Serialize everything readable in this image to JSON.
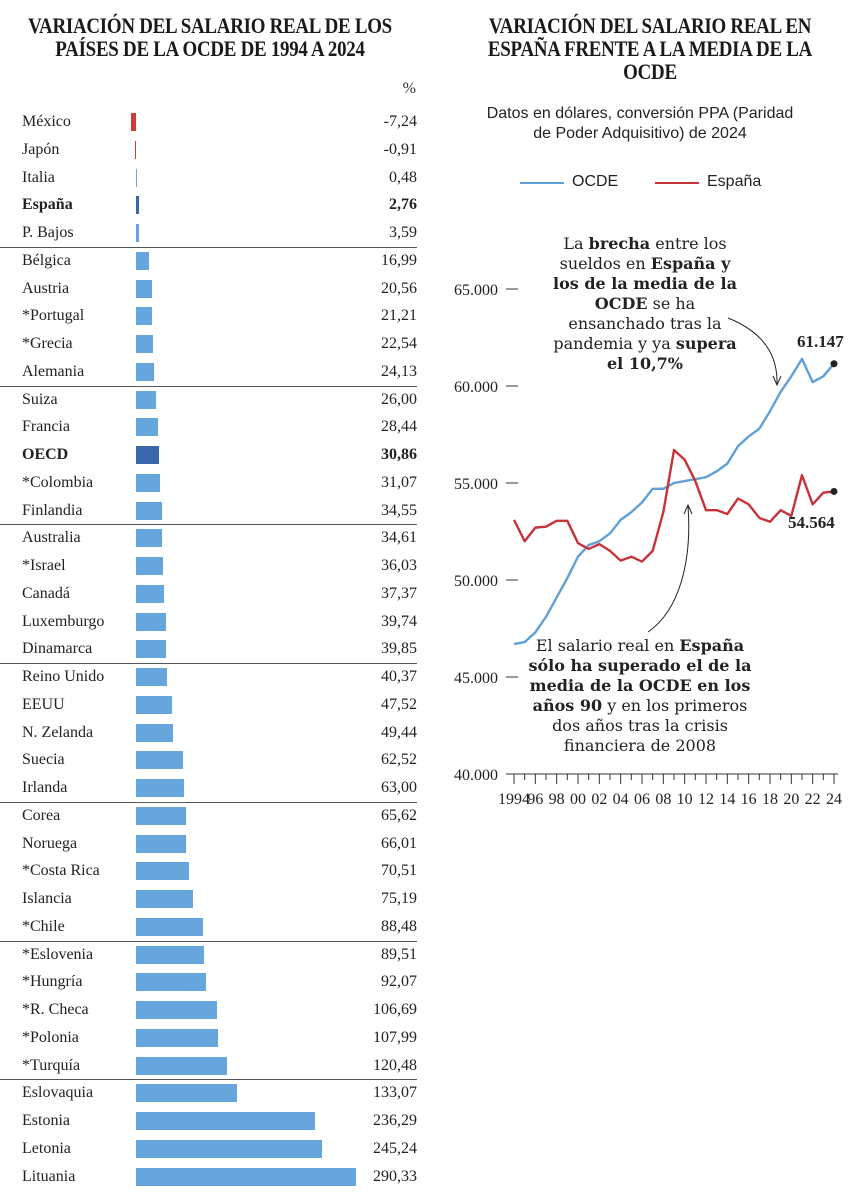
{
  "titles": {
    "left": "VARIACIÓN DEL SALARIO REAL DE LOS PAÍSES DE LA OCDE DE 1994 A 2024",
    "right": "VARIACIÓN DEL SALARIO REAL EN ESPAÑA FRENTE A LA MEDIA DE LA OCDE"
  },
  "bar_unit": "%",
  "subtitle": "Datos en dólares, conversión PPA (Paridad de Poder Adquisitivo) de 2024",
  "legend": {
    "ocde": "OCDE",
    "espana": "España"
  },
  "colors": {
    "bar": "#66a6dc",
    "bar_highlight": "#3a67ad",
    "negative": "#d23a3a",
    "ocde_line": "#5fa0d8",
    "es_line": "#c8323a"
  },
  "annotations": {
    "top": {
      "p1": "La ",
      "b1": "brecha",
      "p2": " entre los sueldos en ",
      "b2": "España y los de la media de la OCDE",
      "p3": " se ha ensanchado tras la pandemia y ya ",
      "b3": "supera el 10,7%"
    },
    "bottom": {
      "p1": "El salario real en ",
      "b1": "España sólo ha superado el de la media de la OCDE en los años 90",
      "p2": " y en los primeros dos años tras la crisis financiera de 2008"
    }
  },
  "end_labels": {
    "ocde": "61.147",
    "espana": "54.564"
  },
  "chart_data": [
    {
      "type": "bar",
      "title": "VARIACIÓN DEL SALARIO REAL DE LOS PAÍSES DE LA OCDE DE 1994 A 2024",
      "unit": "%",
      "rows": [
        {
          "label": "México",
          "value": -7.24,
          "text": "-7,24"
        },
        {
          "label": "Japón",
          "value": -0.91,
          "text": "-0,91"
        },
        {
          "label": "Italia",
          "value": 0.48,
          "text": "0,48"
        },
        {
          "label": "España",
          "value": 2.76,
          "text": "2,76",
          "bold": true,
          "highlight": true
        },
        {
          "label": "P. Bajos",
          "value": 3.59,
          "text": "3,59"
        },
        {
          "label": "Bélgica",
          "value": 16.99,
          "text": "16,99"
        },
        {
          "label": "Austria",
          "value": 20.56,
          "text": "20,56"
        },
        {
          "label": "*Portugal",
          "value": 21.21,
          "text": "21,21"
        },
        {
          "label": "*Grecia",
          "value": 22.54,
          "text": "22,54"
        },
        {
          "label": "Alemania",
          "value": 24.13,
          "text": "24,13"
        },
        {
          "label": "Suiza",
          "value": 26.0,
          "text": "26,00"
        },
        {
          "label": "Francia",
          "value": 28.44,
          "text": "28,44"
        },
        {
          "label": "OECD",
          "value": 30.86,
          "text": "30,86",
          "bold": true,
          "highlight": true
        },
        {
          "label": "*Colombia",
          "value": 31.07,
          "text": "31,07"
        },
        {
          "label": "Finlandia",
          "value": 34.55,
          "text": "34,55"
        },
        {
          "label": "Australia",
          "value": 34.61,
          "text": "34,61"
        },
        {
          "label": "*Israel",
          "value": 36.03,
          "text": "36,03"
        },
        {
          "label": "Canadá",
          "value": 37.37,
          "text": "37,37"
        },
        {
          "label": "Luxemburgo",
          "value": 39.74,
          "text": "39,74"
        },
        {
          "label": "Dinamarca",
          "value": 39.85,
          "text": "39,85"
        },
        {
          "label": "Reino Unido",
          "value": 40.37,
          "text": "40,37"
        },
        {
          "label": "EEUU",
          "value": 47.52,
          "text": "47,52"
        },
        {
          "label": "N. Zelanda",
          "value": 49.44,
          "text": "49,44"
        },
        {
          "label": "Suecia",
          "value": 62.52,
          "text": "62,52"
        },
        {
          "label": "Irlanda",
          "value": 63.0,
          "text": "63,00"
        },
        {
          "label": "Corea",
          "value": 65.62,
          "text": "65,62"
        },
        {
          "label": "Noruega",
          "value": 66.01,
          "text": "66,01"
        },
        {
          "label": "*Costa Rica",
          "value": 70.51,
          "text": "70,51"
        },
        {
          "label": "Islancia",
          "value": 75.19,
          "text": "75,19"
        },
        {
          "label": "*Chile",
          "value": 88.48,
          "text": "88,48"
        },
        {
          "label": "*Eslovenia",
          "value": 89.51,
          "text": "89,51"
        },
        {
          "label": "*Hungría",
          "value": 92.07,
          "text": "92,07"
        },
        {
          "label": "*R. Checa",
          "value": 106.69,
          "text": "106,69"
        },
        {
          "label": "*Polonia",
          "value": 107.99,
          "text": "107,99"
        },
        {
          "label": "*Turquía",
          "value": 120.48,
          "text": "120,48"
        },
        {
          "label": "Eslovaquia",
          "value": 133.07,
          "text": "133,07"
        },
        {
          "label": "Estonia",
          "value": 236.29,
          "text": "236,29"
        },
        {
          "label": "Letonia",
          "value": 245.24,
          "text": "245,24"
        },
        {
          "label": "Lituania",
          "value": 290.33,
          "text": "290,33"
        }
      ]
    },
    {
      "type": "line",
      "title": "VARIACIÓN DEL SALARIO REAL EN ESPAÑA FRENTE A LA MEDIA DE LA OCDE",
      "ylim": [
        40000,
        65000
      ],
      "yticks": [
        40000,
        45000,
        50000,
        55000,
        60000,
        65000
      ],
      "ytick_labels": [
        "40.000",
        "45.000",
        "50.000",
        "55.000",
        "60.000",
        "65.000"
      ],
      "xlim": [
        1994,
        2024
      ],
      "xticks": [
        1994,
        1996,
        1998,
        2000,
        2002,
        2004,
        2006,
        2008,
        2010,
        2012,
        2014,
        2016,
        2018,
        2020,
        2022,
        2024
      ],
      "xtick_labels": [
        "1994",
        "96",
        "98",
        "00",
        "02",
        "04",
        "06",
        "08",
        "10",
        "12",
        "14",
        "16",
        "18",
        "20",
        "22",
        "24"
      ],
      "x": [
        1994,
        1995,
        1996,
        1997,
        1998,
        1999,
        2000,
        2001,
        2002,
        2003,
        2004,
        2005,
        2006,
        2007,
        2008,
        2009,
        2010,
        2011,
        2012,
        2013,
        2014,
        2015,
        2016,
        2017,
        2018,
        2019,
        2020,
        2021,
        2022,
        2023,
        2024
      ],
      "series": [
        {
          "name": "OCDE",
          "values": [
            46700,
            46800,
            47300,
            48100,
            49100,
            50100,
            51200,
            51800,
            52000,
            52400,
            53100,
            53500,
            54000,
            54700,
            54700,
            55000,
            55100,
            55200,
            55300,
            55600,
            56000,
            56900,
            57400,
            57800,
            58700,
            59700,
            60500,
            61400,
            60200,
            60500,
            61147
          ]
        },
        {
          "name": "España",
          "values": [
            53100,
            52000,
            52700,
            52750,
            53050,
            53050,
            51900,
            51600,
            51850,
            51500,
            51000,
            51200,
            50950,
            51500,
            53500,
            56700,
            56200,
            55100,
            53600,
            53600,
            53400,
            54200,
            53900,
            53200,
            53000,
            53600,
            53300,
            55400,
            53900,
            54500,
            54564
          ]
        }
      ]
    }
  ]
}
